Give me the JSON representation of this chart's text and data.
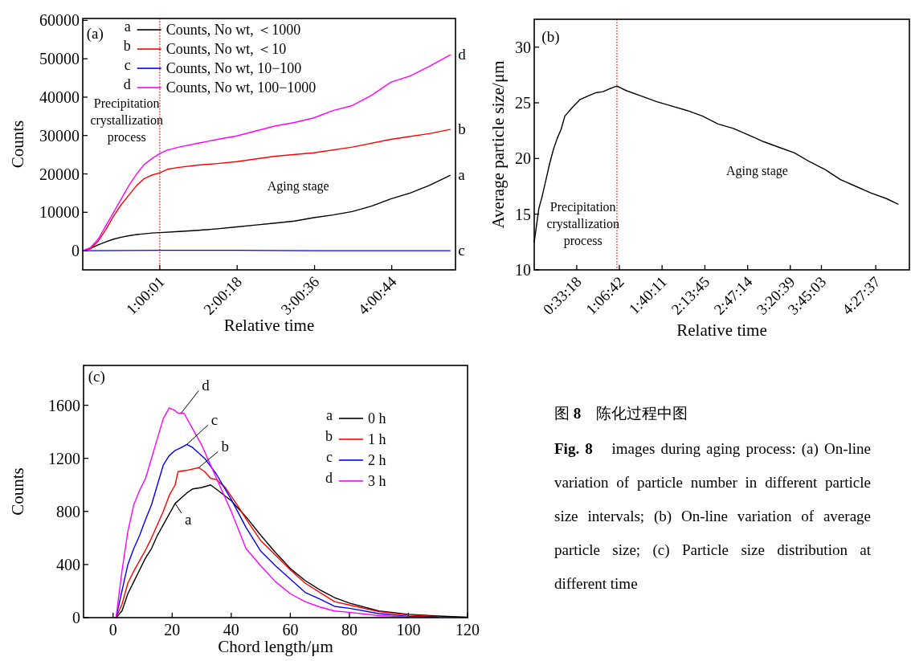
{
  "chart_data": [
    {
      "type": "line",
      "xlabel": "Relative time",
      "ylabel": "Counts",
      "xlim": [
        0,
        4.84
      ],
      "ylim": [
        -5000,
        60500
      ],
      "xticks": [
        {
          "value": 1.0003,
          "label": "1:00:01"
        },
        {
          "value": 2.005,
          "label": "2:00:18"
        },
        {
          "value": 3.01,
          "label": "3:00:36"
        },
        {
          "value": 4.0122,
          "label": "4:00:44"
        }
      ],
      "yticks": [
        0,
        10000,
        20000,
        30000,
        40000,
        50000,
        60000
      ],
      "legend": "top",
      "ref_lines": [
        {
          "axis": "x",
          "value": 1.0003,
          "color": "#ff0000",
          "line_style": "dotted"
        }
      ],
      "series": [
        {
          "name": "Counts, No wt, ＜1000",
          "color": "#000000",
          "x": [
            0,
            0.1,
            0.2,
            0.3,
            0.4,
            0.5,
            0.6,
            0.7,
            0.8,
            0.9,
            1.0,
            1.25,
            1.5,
            1.75,
            2.0,
            2.25,
            2.5,
            2.75,
            3.0,
            3.25,
            3.5,
            3.75,
            4.0,
            4.25,
            4.5,
            4.77
          ],
          "values": [
            0,
            600,
            1500,
            2300,
            3000,
            3500,
            3900,
            4200,
            4400,
            4600,
            4700,
            5000,
            5300,
            5700,
            6200,
            6700,
            7200,
            7700,
            8600,
            9300,
            10200,
            11600,
            13500,
            15000,
            17000,
            19600
          ]
        },
        {
          "name": "Counts, No wt, ＜10",
          "color": "#ff0000",
          "x": [
            0,
            0.1,
            0.2,
            0.3,
            0.4,
            0.5,
            0.6,
            0.7,
            0.8,
            0.9,
            1.0,
            1.1,
            1.25,
            1.5,
            1.75,
            2.0,
            2.5,
            3.0,
            3.5,
            4.0,
            4.5,
            4.77
          ],
          "values": [
            0,
            500,
            2500,
            5500,
            9000,
            12000,
            14500,
            17000,
            18800,
            19700,
            20300,
            21200,
            21700,
            22300,
            22700,
            23200,
            24600,
            25500,
            27000,
            29000,
            30500,
            31600
          ]
        },
        {
          "name": "Counts, No wt, 10−100",
          "color": "#0000ff",
          "x": [
            0,
            1.0,
            2.0,
            3.0,
            4.0,
            4.77
          ],
          "values": [
            0,
            100,
            100,
            0,
            0,
            0
          ]
        },
        {
          "name": "Counts, No wt, 100−1000",
          "color": "#ff00ff",
          "x": [
            0,
            0.1,
            0.2,
            0.3,
            0.4,
            0.5,
            0.6,
            0.7,
            0.8,
            0.9,
            1.0,
            1.1,
            1.25,
            1.5,
            1.75,
            2.0,
            2.25,
            2.5,
            2.75,
            3.0,
            3.25,
            3.5,
            3.75,
            4.0,
            4.25,
            4.5,
            4.77
          ],
          "values": [
            0,
            800,
            3000,
            6500,
            10000,
            13500,
            17000,
            20000,
            22500,
            24000,
            25300,
            26200,
            27000,
            28000,
            29000,
            29900,
            31200,
            32500,
            33400,
            34600,
            36500,
            37800,
            40500,
            43900,
            45500,
            48000,
            51000
          ]
        }
      ],
      "annotations": [
        "(a)",
        "Precipitation crystallization process",
        "Aging stage",
        "a",
        "b",
        "c",
        "d",
        {
          "text": "a",
          "x": 4.77,
          "y": 19600
        },
        {
          "text": "b",
          "x": 4.77,
          "y": 31600
        },
        {
          "text": "c",
          "x": 4.77,
          "y": 0
        },
        {
          "text": "d",
          "x": 4.77,
          "y": 51000
        }
      ]
    },
    {
      "type": "line",
      "xlabel": "Relative time",
      "ylabel": "Average particle size/μm",
      "xlim": [
        0,
        4.9
      ],
      "ylim": [
        10,
        32.5
      ],
      "xticks": [
        {
          "value": 0.555,
          "label": "0:33:18"
        },
        {
          "value": 1.1117,
          "label": "1:06:42"
        },
        {
          "value": 1.6697,
          "label": "1:40:11"
        },
        {
          "value": 2.2292,
          "label": "2:13:45"
        },
        {
          "value": 2.7872,
          "label": "2:47:14"
        },
        {
          "value": 3.3442,
          "label": "3:20:39"
        },
        {
          "value": 3.7508,
          "label": "3:45:03"
        },
        {
          "value": 4.4603,
          "label": "4:27:37"
        }
      ],
      "yticks": [
        10,
        15,
        20,
        25,
        30
      ],
      "ref_lines": [
        {
          "axis": "x",
          "value": 1.08,
          "color": "#ff0000",
          "line_style": "dotted"
        }
      ],
      "series": [
        {
          "color": "#000000",
          "x": [
            0,
            0.03,
            0.06,
            0.1,
            0.15,
            0.2,
            0.25,
            0.3,
            0.35,
            0.4,
            0.5,
            0.6,
            0.7,
            0.8,
            0.9,
            1.0,
            1.08,
            1.2,
            1.4,
            1.6,
            1.8,
            2.0,
            2.2,
            2.4,
            2.6,
            2.8,
            3.0,
            3.2,
            3.4,
            3.6,
            3.8,
            4.0,
            4.2,
            4.4,
            4.6,
            4.75
          ],
          "values": [
            12.5,
            14,
            15.5,
            16.5,
            18,
            19.5,
            20.8,
            21.8,
            22.6,
            23.8,
            24.6,
            25.3,
            25.6,
            25.9,
            26,
            26.3,
            26.5,
            26.1,
            25.6,
            25.1,
            24.7,
            24.3,
            23.8,
            23.1,
            22.7,
            22.1,
            21.5,
            21.0,
            20.5,
            19.7,
            19.0,
            18.1,
            17.5,
            16.9,
            16.4,
            15.9
          ]
        }
      ],
      "annotations": [
        "(b)",
        "Precipitation crystallization process",
        "Aging stage"
      ]
    },
    {
      "type": "line",
      "xlabel": "Chord length/μm",
      "ylabel": "Counts",
      "xlim": [
        -10,
        120
      ],
      "ylim": [
        0,
        1900
      ],
      "xticks": [
        0,
        20,
        40,
        60,
        80,
        100,
        120
      ],
      "yticks": [
        0,
        400,
        800,
        1200,
        1600
      ],
      "legend": "top right",
      "series": [
        {
          "name": "0 h",
          "color": "#000000",
          "x": [
            1,
            3,
            5,
            7,
            9,
            11,
            13,
            15,
            17,
            19,
            21,
            23,
            25,
            27,
            30,
            33,
            36,
            40,
            45,
            50,
            55,
            60,
            65,
            70,
            75,
            80,
            90,
            100,
            110,
            120
          ],
          "values": [
            0,
            50,
            180,
            270,
            360,
            450,
            520,
            620,
            700,
            780,
            860,
            900,
            940,
            970,
            980,
            1000,
            950,
            880,
            760,
            620,
            490,
            370,
            280,
            210,
            150,
            110,
            50,
            25,
            12,
            3
          ]
        },
        {
          "name": "1 h",
          "color": "#ff0000",
          "x": [
            1,
            3,
            5,
            7,
            9,
            11,
            13,
            15,
            17,
            19,
            21,
            22,
            25,
            29,
            31,
            33,
            35,
            38,
            42,
            46,
            50,
            55,
            60,
            65,
            70,
            75,
            80,
            90,
            100,
            110
          ],
          "values": [
            0,
            100,
            260,
            350,
            430,
            510,
            600,
            700,
            800,
            920,
            1000,
            1100,
            1110,
            1130,
            1100,
            1050,
            1040,
            980,
            850,
            710,
            580,
            470,
            360,
            260,
            190,
            120,
            95,
            45,
            20,
            8
          ]
        },
        {
          "name": "2 h",
          "color": "#0000ff",
          "x": [
            1,
            3,
            5,
            7,
            9,
            11,
            13,
            15,
            17,
            19,
            21,
            23,
            25,
            27,
            31,
            35,
            40,
            45,
            50,
            55,
            60,
            65,
            70,
            75,
            80,
            90,
            100,
            110
          ],
          "values": [
            0,
            200,
            400,
            520,
            620,
            740,
            850,
            1000,
            1150,
            1220,
            1260,
            1280,
            1305,
            1280,
            1200,
            1080,
            890,
            680,
            500,
            390,
            290,
            190,
            140,
            85,
            70,
            30,
            10,
            5
          ]
        },
        {
          "name": "3 h",
          "color": "#ff00ff",
          "x": [
            1,
            3,
            5,
            7,
            9,
            11,
            13,
            15,
            17,
            19,
            21,
            22,
            24,
            27,
            30,
            35,
            40,
            45,
            50,
            55,
            60,
            65,
            70,
            75,
            80,
            90,
            100
          ],
          "values": [
            0,
            350,
            650,
            850,
            960,
            1050,
            1200,
            1350,
            1500,
            1580,
            1560,
            1540,
            1540,
            1420,
            1300,
            1050,
            800,
            520,
            390,
            270,
            180,
            120,
            80,
            50,
            40,
            15,
            5
          ]
        }
      ],
      "annotations": [
        "(c)",
        "a",
        "b",
        "c",
        "d",
        {
          "text": "a",
          "x": 21,
          "y": 860
        },
        {
          "text": "b",
          "x": 29,
          "y": 1130
        },
        {
          "text": "c",
          "x": 25,
          "y": 1305
        },
        {
          "text": "d",
          "x": 23,
          "y": 1540
        }
      ]
    },
    {
      "type": "other",
      "title": "图 **8**　陈化过程中图",
      "annotations": [
        "**Fig. 8**　images during aging process: (a) On-line variation of particle number in different particle size intervals; (b) On-line variation of average particle size; (c) Particle size distribution at different time"
      ]
    }
  ]
}
